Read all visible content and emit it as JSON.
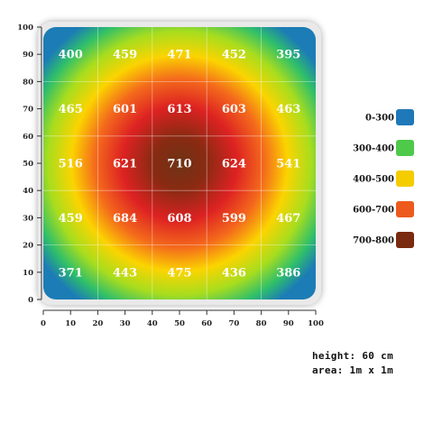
{
  "chart_data": {
    "type": "heatmap",
    "title": "",
    "xlabel": "",
    "ylabel": "",
    "xlim": [
      0,
      100
    ],
    "ylim": [
      0,
      100
    ],
    "x_ticks": [
      "0",
      "10",
      "20",
      "30",
      "40",
      "50",
      "60",
      "70",
      "80",
      "90",
      "100"
    ],
    "y_ticks": [
      "0",
      "10",
      "20",
      "30",
      "40",
      "50",
      "60",
      "70",
      "80",
      "90",
      "100"
    ],
    "grid": true,
    "cells": [
      {
        "x": 10,
        "y": 90,
        "value": 400
      },
      {
        "x": 30,
        "y": 90,
        "value": 459
      },
      {
        "x": 50,
        "y": 90,
        "value": 471
      },
      {
        "x": 70,
        "y": 90,
        "value": 452
      },
      {
        "x": 90,
        "y": 90,
        "value": 395
      },
      {
        "x": 10,
        "y": 70,
        "value": 465
      },
      {
        "x": 30,
        "y": 70,
        "value": 601
      },
      {
        "x": 50,
        "y": 70,
        "value": 613
      },
      {
        "x": 70,
        "y": 70,
        "value": 603
      },
      {
        "x": 90,
        "y": 70,
        "value": 463
      },
      {
        "x": 10,
        "y": 50,
        "value": 516
      },
      {
        "x": 30,
        "y": 50,
        "value": 621
      },
      {
        "x": 50,
        "y": 50,
        "value": 710
      },
      {
        "x": 70,
        "y": 50,
        "value": 624
      },
      {
        "x": 90,
        "y": 50,
        "value": 541
      },
      {
        "x": 10,
        "y": 30,
        "value": 459
      },
      {
        "x": 30,
        "y": 30,
        "value": 684
      },
      {
        "x": 50,
        "y": 30,
        "value": 608
      },
      {
        "x": 70,
        "y": 30,
        "value": 599
      },
      {
        "x": 90,
        "y": 30,
        "value": 467
      },
      {
        "x": 10,
        "y": 10,
        "value": 371
      },
      {
        "x": 30,
        "y": 10,
        "value": 443
      },
      {
        "x": 50,
        "y": 10,
        "value": 475
      },
      {
        "x": 70,
        "y": 10,
        "value": 436
      },
      {
        "x": 90,
        "y": 10,
        "value": 386
      }
    ],
    "legend": [
      {
        "label": "0-300",
        "color": "#1f78b8"
      },
      {
        "label": "300-400",
        "color": "#4ec94a"
      },
      {
        "label": "400-500",
        "color": "#f5cc00"
      },
      {
        "label": "600-700",
        "color": "#ee5a1e"
      },
      {
        "label": "700-800",
        "color": "#7a2a0e"
      }
    ],
    "legend_position": "right"
  },
  "notes": {
    "height": "height: 60 cm",
    "area": "area: 1m x 1m"
  }
}
